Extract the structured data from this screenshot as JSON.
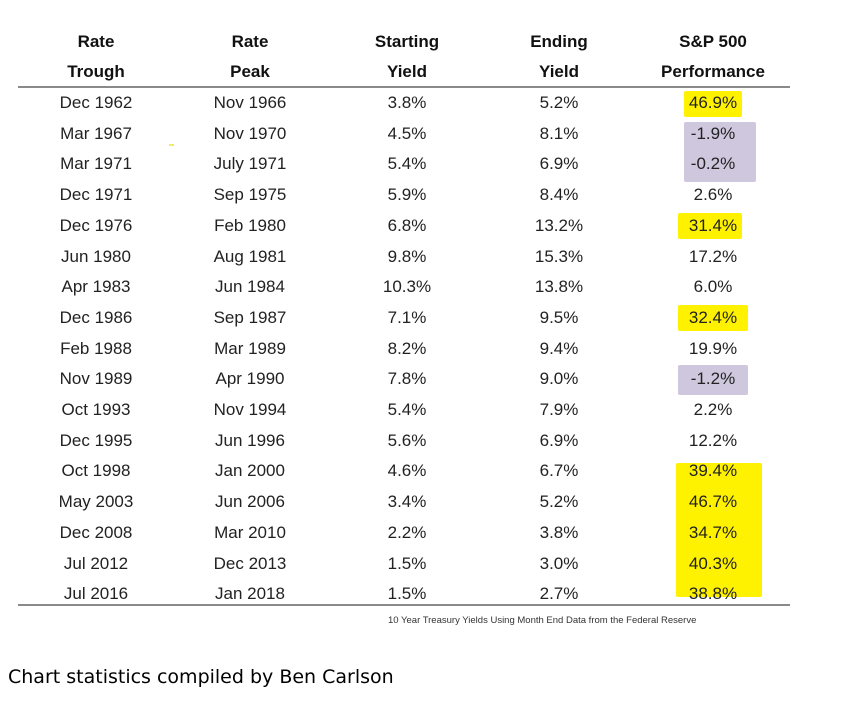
{
  "table": {
    "headers": [
      [
        "Rate",
        "Trough"
      ],
      [
        "Rate",
        "Peak"
      ],
      [
        "Starting",
        "Yield"
      ],
      [
        "Ending",
        "Yield"
      ],
      [
        "S&P 500",
        "Performance"
      ]
    ],
    "rows": [
      {
        "trough": "Dec 1962",
        "peak": "Nov 1966",
        "start": "3.8%",
        "end": "5.2%",
        "perf": "46.9%",
        "highlight": "yellow"
      },
      {
        "trough": "Mar 1967",
        "peak": "Nov 1970",
        "start": "4.5%",
        "end": "8.1%",
        "perf": "-1.9%",
        "highlight": "purple"
      },
      {
        "trough": "Mar 1971",
        "peak": "July 1971",
        "start": "5.4%",
        "end": "6.9%",
        "perf": "-0.2%",
        "highlight": "purple"
      },
      {
        "trough": "Dec 1971",
        "peak": "Sep 1975",
        "start": "5.9%",
        "end": "8.4%",
        "perf": "2.6%",
        "highlight": "none"
      },
      {
        "trough": "Dec 1976",
        "peak": "Feb 1980",
        "start": "6.8%",
        "end": "13.2%",
        "perf": "31.4%",
        "highlight": "yellow"
      },
      {
        "trough": "Jun 1980",
        "peak": "Aug 1981",
        "start": "9.8%",
        "end": "15.3%",
        "perf": "17.2%",
        "highlight": "none"
      },
      {
        "trough": "Apr 1983",
        "peak": "Jun 1984",
        "start": "10.3%",
        "end": "13.8%",
        "perf": "6.0%",
        "highlight": "none"
      },
      {
        "trough": "Dec 1986",
        "peak": "Sep 1987",
        "start": "7.1%",
        "end": "9.5%",
        "perf": "32.4%",
        "highlight": "yellow"
      },
      {
        "trough": "Feb 1988",
        "peak": "Mar 1989",
        "start": "8.2%",
        "end": "9.4%",
        "perf": "19.9%",
        "highlight": "none"
      },
      {
        "trough": "Nov 1989",
        "peak": "Apr 1990",
        "start": "7.8%",
        "end": "9.0%",
        "perf": "-1.2%",
        "highlight": "purple"
      },
      {
        "trough": "Oct 1993",
        "peak": "Nov 1994",
        "start": "5.4%",
        "end": "7.9%",
        "perf": "2.2%",
        "highlight": "none"
      },
      {
        "trough": "Dec 1995",
        "peak": "Jun 1996",
        "start": "5.6%",
        "end": "6.9%",
        "perf": "12.2%",
        "highlight": "none"
      },
      {
        "trough": "Oct 1998",
        "peak": "Jan 2000",
        "start": "4.6%",
        "end": "6.7%",
        "perf": "39.4%",
        "highlight": "yellow"
      },
      {
        "trough": "May 2003",
        "peak": "Jun 2006",
        "start": "3.4%",
        "end": "5.2%",
        "perf": "46.7%",
        "highlight": "yellow"
      },
      {
        "trough": "Dec 2008",
        "peak": "Mar 2010",
        "start": "2.2%",
        "end": "3.8%",
        "perf": "34.7%",
        "highlight": "yellow"
      },
      {
        "trough": "Jul 2012",
        "peak": "Dec 2013",
        "start": "1.5%",
        "end": "3.0%",
        "perf": "40.3%",
        "highlight": "yellow"
      },
      {
        "trough": "Jul 2016",
        "peak": "Jan 2018",
        "start": "1.5%",
        "end": "2.7%",
        "perf": "38.8%",
        "highlight": "yellow"
      }
    ]
  },
  "source_note": "10 Year Treasury Yields Using Month End Data from the Federal Reserve",
  "credit": "Chart statistics compiled by Ben Carlson",
  "colors": {
    "yellow_highlight": "#fff200",
    "purple_highlight": "#cfc7de",
    "rule": "#8a8a8a"
  }
}
